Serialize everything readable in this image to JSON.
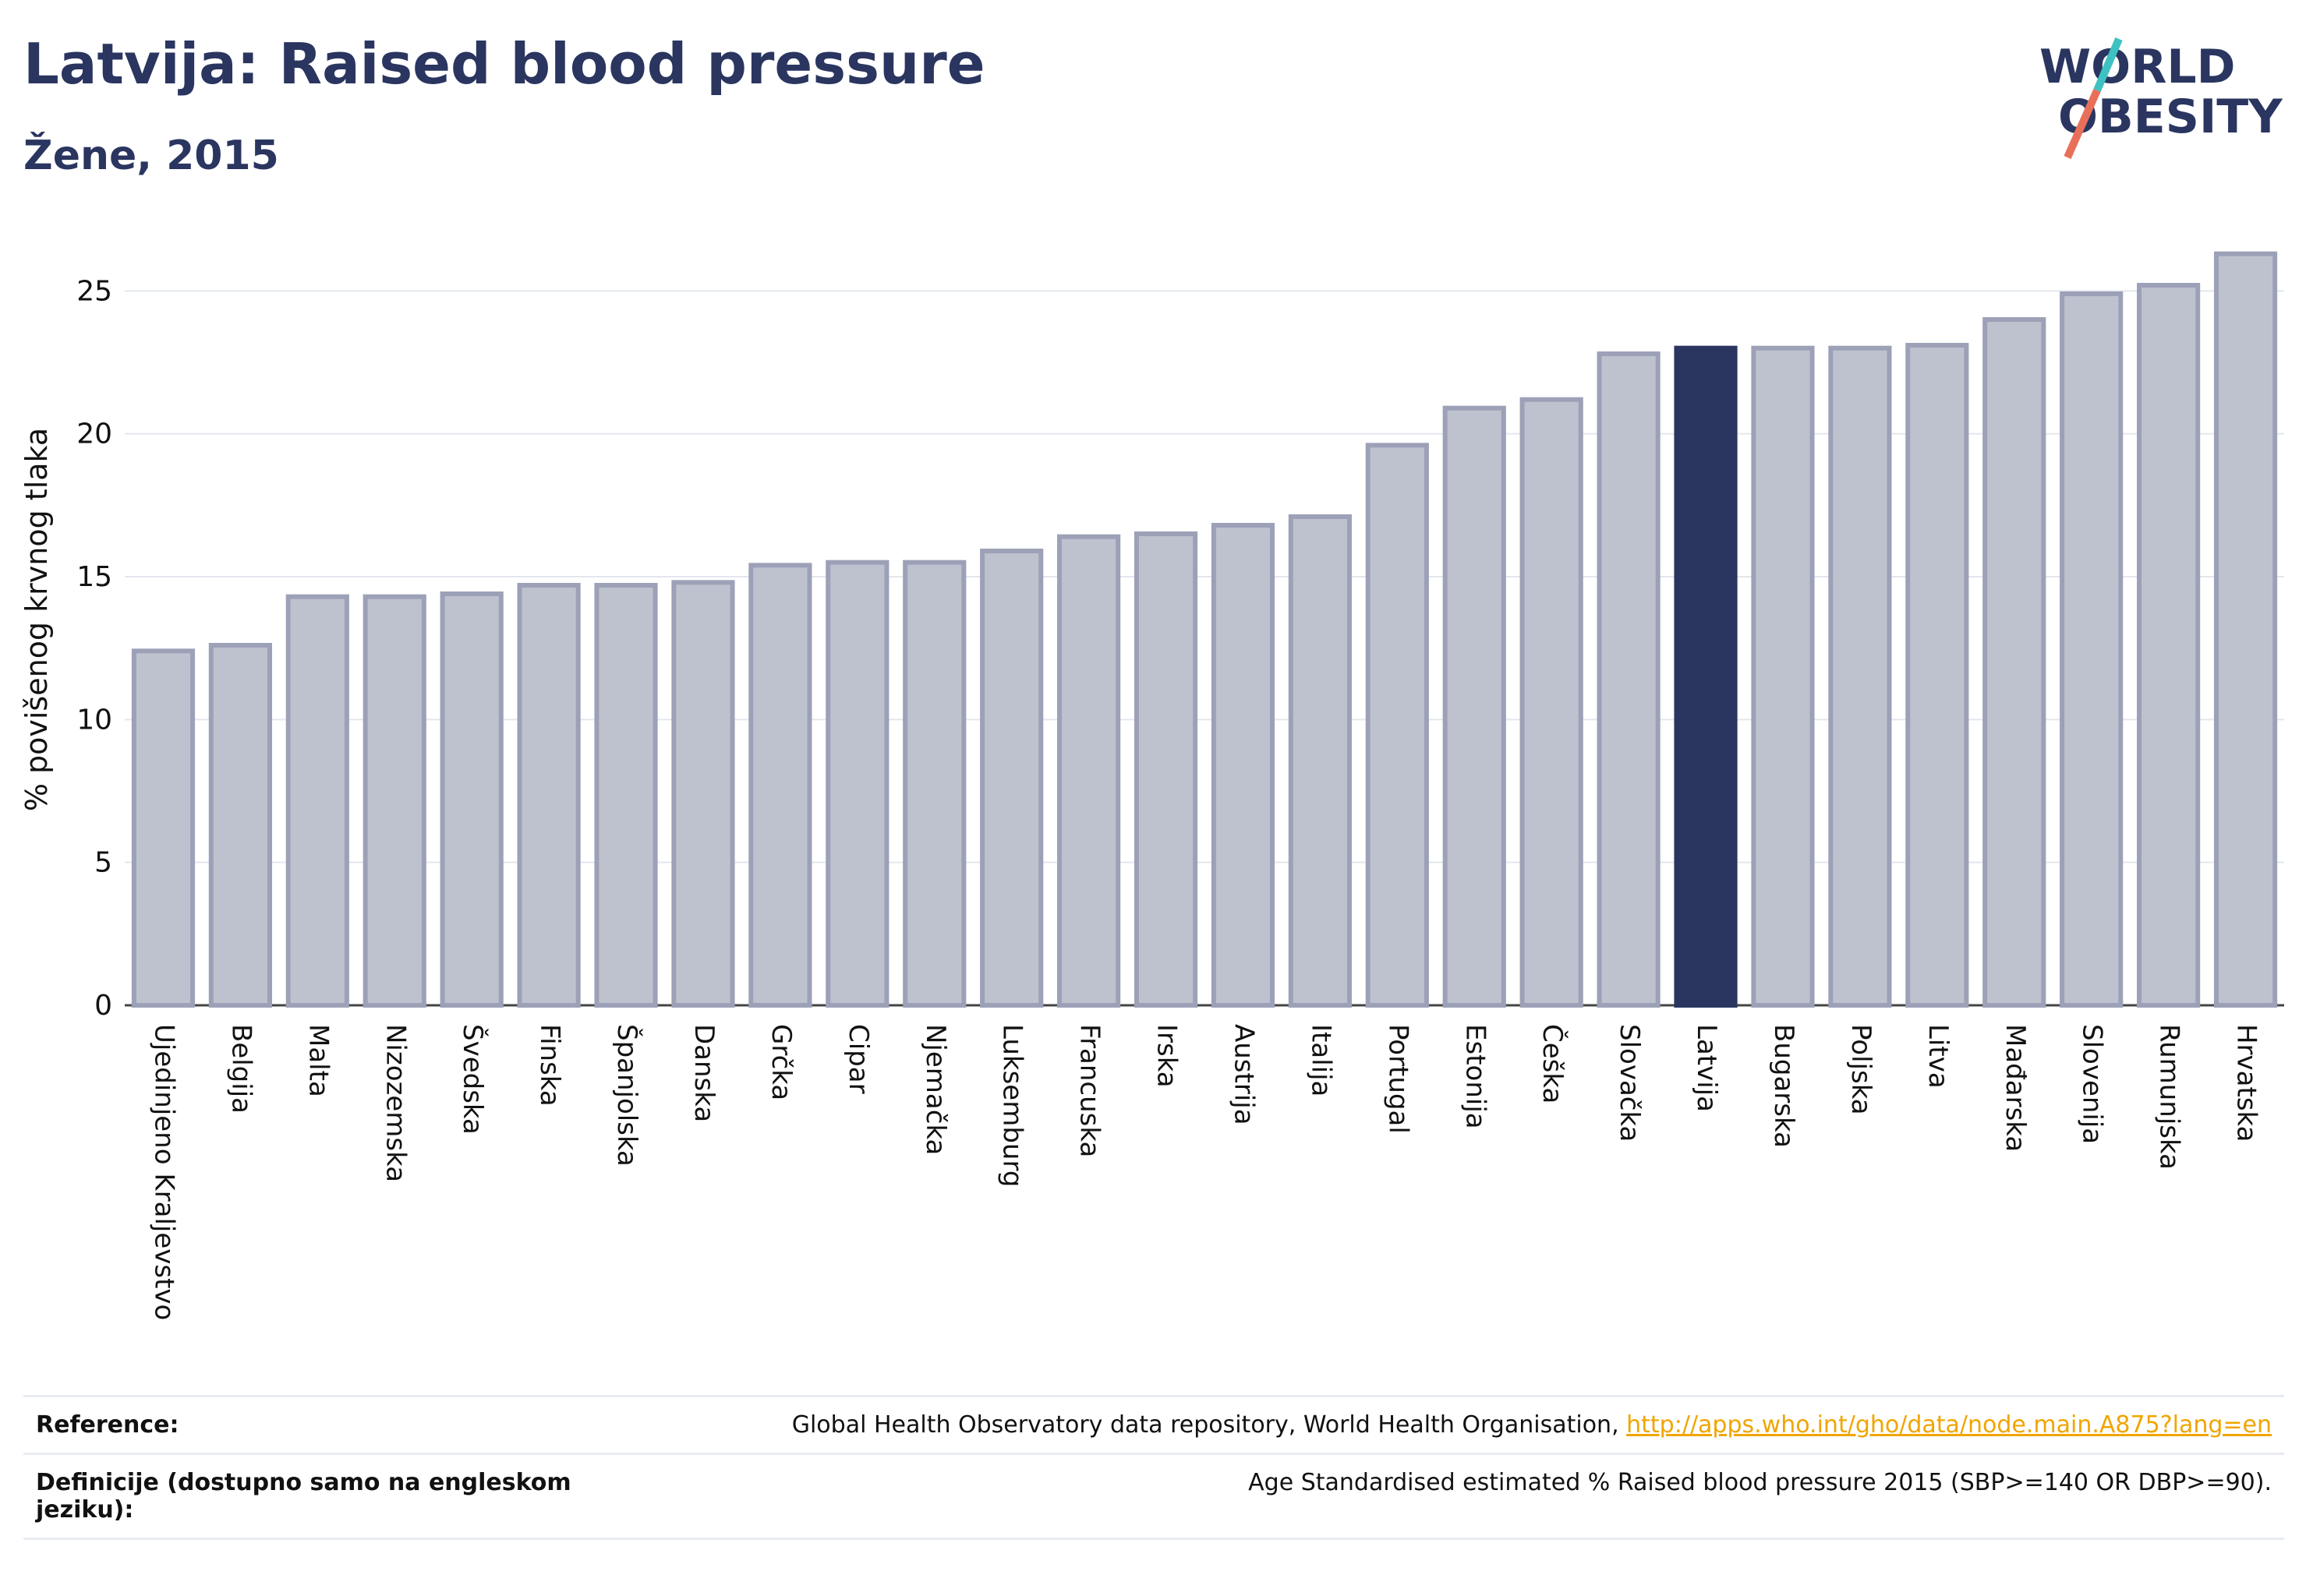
{
  "header": {
    "title": "Latvija: Raised blood pressure",
    "subtitle": "Žene, 2015"
  },
  "logo": {
    "line1": "WORLD",
    "line2": "OBESITY"
  },
  "colors": {
    "highlight": "#2a3560",
    "bar_fill": "#bec2cf",
    "bar_stroke": "#9ca1b7",
    "grid": "#e3e6ed",
    "accent_teal": "#3ec1c1",
    "accent_coral": "#e8705a"
  },
  "chart_data": {
    "type": "bar",
    "ylabel": "% povišenog krvnog tlaka",
    "ylim": [
      0,
      27
    ],
    "yticks": [
      0,
      5,
      10,
      15,
      20,
      25
    ],
    "highlight": "Latvija",
    "categories": [
      "Ujedinjeno Kraljevstvo",
      "Belgija",
      "Malta",
      "Nizozemska",
      "Švedska",
      "Finska",
      "Španjolska",
      "Danska",
      "Grčka",
      "Cipar",
      "Njemačka",
      "Luksemburg",
      "Francuska",
      "Irska",
      "Austrija",
      "Italija",
      "Portugal",
      "Estonija",
      "Češka",
      "Slovačka",
      "Latvija",
      "Bugarska",
      "Poljska",
      "Litva",
      "Mađarska",
      "Slovenija",
      "Rumunjska",
      "Hrvatska"
    ],
    "values": [
      12.4,
      12.6,
      14.3,
      14.3,
      14.4,
      14.7,
      14.7,
      14.8,
      15.4,
      15.5,
      15.5,
      15.9,
      16.4,
      16.5,
      16.8,
      17.1,
      19.6,
      20.9,
      21.2,
      22.8,
      23.0,
      23.0,
      23.0,
      23.1,
      24.0,
      24.9,
      25.2,
      26.3
    ]
  },
  "references": {
    "reference_label": "Reference:",
    "reference_text": "Global Health Observatory data repository, World Health Organisation, ",
    "reference_link": "http://apps.who.int/gho/data/node.main.A875?lang=en",
    "definition_label": "Definicije (dostupno samo na engleskom jeziku):",
    "definition_text": "Age Standardised estimated % Raised blood pressure 2015 (SBP>=140 OR DBP>=90)."
  }
}
